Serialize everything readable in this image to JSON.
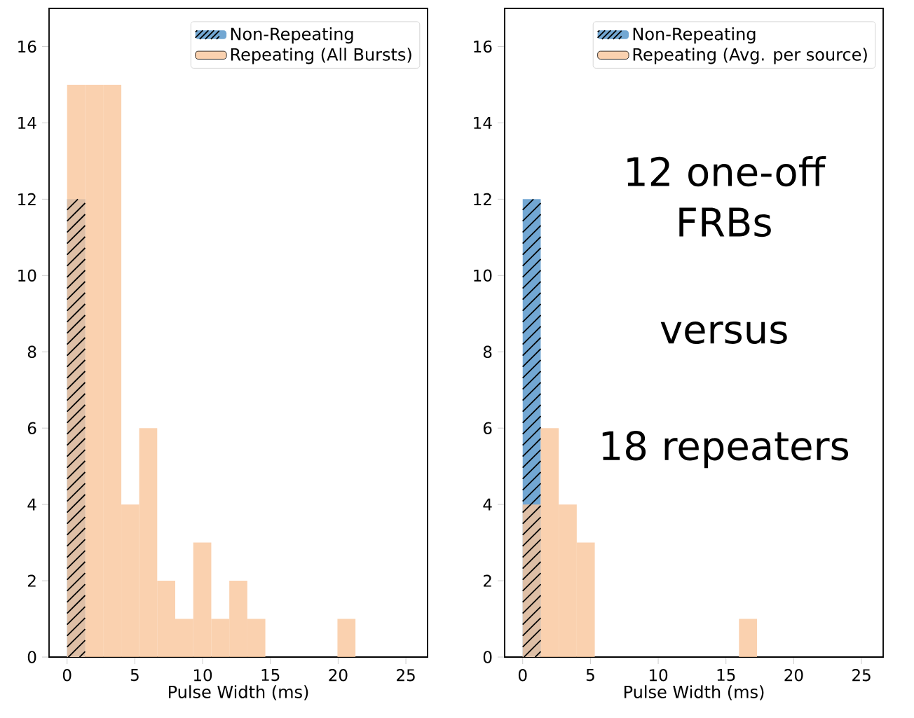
{
  "chart_data": [
    {
      "type": "histogram",
      "xlabel": "Pulse Width (ms)",
      "xlim": [
        -1.33,
        26.6
      ],
      "ylim": [
        0,
        17
      ],
      "xticks": [
        0,
        5,
        10,
        15,
        20,
        25
      ],
      "yticks": [
        0,
        2,
        4,
        6,
        8,
        10,
        12,
        14,
        16
      ],
      "legend": "top right",
      "bins": [
        0,
        1.33,
        2.66,
        4.0,
        5.32,
        6.65,
        7.98,
        9.31,
        10.64,
        11.97,
        13.3,
        14.63,
        15.96,
        17.29,
        18.62,
        19.95,
        21.28
      ],
      "series": [
        {
          "name": "Non-Repeating",
          "color": "#72a7d3",
          "values": [
            12,
            0,
            0,
            0,
            0,
            0,
            0,
            0,
            0,
            0,
            0,
            0,
            0,
            0,
            0,
            0
          ]
        },
        {
          "name": "Repeating (All Bursts)",
          "color": "#f9c69b",
          "values": [
            15,
            15,
            15,
            4,
            6,
            2,
            1,
            3,
            1,
            2,
            1,
            0,
            0,
            0,
            0,
            1
          ]
        }
      ]
    },
    {
      "type": "histogram",
      "xlabel": "Pulse Width (ms)",
      "xlim": [
        -1.33,
        26.6
      ],
      "ylim": [
        0,
        17
      ],
      "xticks": [
        0,
        5,
        10,
        15,
        20,
        25
      ],
      "yticks": [
        0,
        2,
        4,
        6,
        8,
        10,
        12,
        14,
        16
      ],
      "legend": "top right",
      "bins": [
        0,
        1.33,
        2.66,
        3.99,
        5.32,
        6.65,
        7.98,
        9.31,
        10.64,
        11.97,
        13.3,
        14.63,
        15.96,
        17.29
      ],
      "annotations": [
        "12 one-off FRBs",
        "versus",
        "18 repeaters"
      ],
      "series": [
        {
          "name": "Non-Repeating",
          "color": "#72a7d3",
          "values": [
            12,
            0,
            0,
            0,
            0,
            0,
            0,
            0,
            0,
            0,
            0,
            0,
            0
          ]
        },
        {
          "name": "Repeating (Avg. per source)",
          "color": "#f9c69b",
          "values": [
            4,
            6,
            4,
            3,
            0,
            0,
            0,
            0,
            0,
            0,
            0,
            0,
            1
          ]
        }
      ]
    }
  ]
}
